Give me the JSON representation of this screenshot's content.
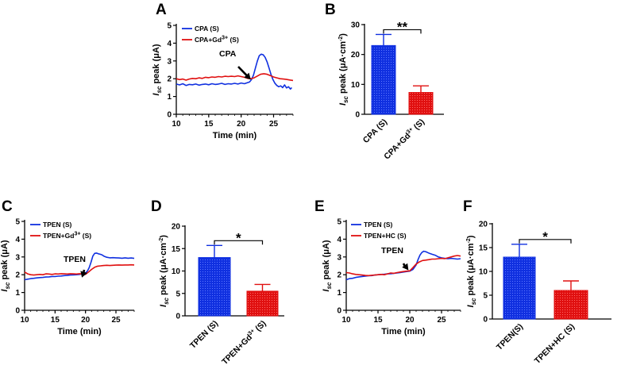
{
  "chart_data": [
    {
      "panel": "A",
      "type": "line",
      "xlabel": "Time (min)",
      "ylabel_prefix": "I",
      "ylabel_sub": "sc",
      "ylabel_rest": " peak (μA)",
      "xlim": [
        10,
        28
      ],
      "ylim": [
        0,
        5
      ],
      "xticks": [
        "10",
        "15",
        "20",
        "25"
      ],
      "yticks": [
        "0",
        "1",
        "2",
        "3",
        "4",
        "5"
      ],
      "series": [
        {
          "name": "CPA (S)",
          "legend_main": "CPA (S)",
          "legend_sup": "",
          "legend_after": "",
          "color": "#1030e0",
          "x": [
            10,
            10.5,
            11,
            11.5,
            12,
            12.5,
            13,
            13.5,
            14,
            14.5,
            15,
            15.5,
            16,
            16.5,
            17,
            17.5,
            18,
            18.5,
            19,
            19.5,
            20,
            20.5,
            21,
            21.3,
            21.6,
            21.9,
            22.2,
            22.5,
            22.8,
            23.1,
            23.4,
            23.7,
            24,
            24.3,
            24.6,
            24.9,
            25.2,
            25.5,
            25.8,
            26.1,
            26.4,
            26.7,
            27,
            27.3,
            27.6,
            27.8
          ],
          "y": [
            1.7,
            1.65,
            1.72,
            1.62,
            1.68,
            1.66,
            1.7,
            1.64,
            1.68,
            1.7,
            1.66,
            1.72,
            1.68,
            1.7,
            1.74,
            1.68,
            1.72,
            1.7,
            1.74,
            1.7,
            1.76,
            1.72,
            1.78,
            1.82,
            1.95,
            2.2,
            2.6,
            3.0,
            3.3,
            3.38,
            3.35,
            3.2,
            2.95,
            2.6,
            2.25,
            1.95,
            1.75,
            1.62,
            1.55,
            1.6,
            1.5,
            1.65,
            1.48,
            1.55,
            1.42,
            1.5
          ]
        },
        {
          "name": "CPA+Gd3+ (S)",
          "legend_main": "CPA+Gd",
          "legend_sup": "3+",
          "legend_after": " (S)",
          "color": "#e01010",
          "x": [
            10,
            10.5,
            11,
            11.5,
            12,
            12.5,
            13,
            13.5,
            14,
            14.5,
            15,
            15.5,
            16,
            16.5,
            17,
            17.5,
            18,
            18.5,
            19,
            19.5,
            20,
            20.5,
            21,
            21.5,
            22,
            22.5,
            23,
            23.5,
            24,
            24.5,
            25,
            25.5,
            26,
            26.5,
            27,
            27.5,
            28
          ],
          "y": [
            2.0,
            1.95,
            1.98,
            1.92,
            1.98,
            2.02,
            2.0,
            2.05,
            2.02,
            2.08,
            2.06,
            2.1,
            2.08,
            2.12,
            2.1,
            2.14,
            2.12,
            2.14,
            2.12,
            2.16,
            2.12,
            2.08,
            2.02,
            2.0,
            2.05,
            2.15,
            2.25,
            2.28,
            2.25,
            2.18,
            2.1,
            2.05,
            2.0,
            1.98,
            1.96,
            1.93,
            1.9
          ]
        }
      ],
      "annotation": {
        "text": "CPA",
        "x": 21.5,
        "y": 1.95
      }
    },
    {
      "panel": "B",
      "type": "bar",
      "ylabel_prefix": "I",
      "ylabel_sub": "sc",
      "ylabel_rest": " peak (μA·cm",
      "ylabel_sup": "-2",
      "ylabel_end": ")",
      "ylim": [
        0,
        30
      ],
      "yticks": [
        "0",
        "10",
        "20",
        "30"
      ],
      "categories": [
        "CPA (S)",
        "CPA+Gd3+ (S)"
      ],
      "cat_main": [
        "CPA (S)",
        "CPA+Gd"
      ],
      "cat_sup": [
        "",
        "3+"
      ],
      "cat_after": [
        "",
        " (S)"
      ],
      "values": [
        23.0,
        7.3
      ],
      "errors": [
        3.7,
        2.2
      ],
      "colors": [
        "#1030e0",
        "#e01010"
      ],
      "significance": "**"
    },
    {
      "panel": "C",
      "type": "line",
      "xlabel": "Time (min)",
      "ylabel_prefix": "I",
      "ylabel_sub": "sc",
      "ylabel_rest": " peak (μA)",
      "xlim": [
        10,
        28
      ],
      "ylim": [
        0,
        5
      ],
      "xticks": [
        "10",
        "15",
        "20",
        "25"
      ],
      "yticks": [
        "0",
        "1",
        "2",
        "3",
        "4",
        "5"
      ],
      "series": [
        {
          "name": "TPEN (S)",
          "legend_main": "TPEN (S)",
          "legend_sup": "",
          "legend_after": "",
          "color": "#1030e0",
          "x": [
            10,
            10.5,
            11,
            11.5,
            12,
            12.5,
            13,
            13.5,
            14,
            14.5,
            15,
            15.5,
            16,
            16.5,
            17,
            17.5,
            18,
            18.5,
            19,
            19.5,
            20,
            20.3,
            20.6,
            20.9,
            21.2,
            21.5,
            21.8,
            22.1,
            22.4,
            22.7,
            23,
            23.5,
            24,
            24.5,
            25,
            25.5,
            26,
            26.5,
            27,
            27.5,
            28
          ],
          "y": [
            1.72,
            1.75,
            1.78,
            1.8,
            1.82,
            1.84,
            1.85,
            1.87,
            1.88,
            1.9,
            1.9,
            1.92,
            1.93,
            1.95,
            1.96,
            1.98,
            1.99,
            2.0,
            2.02,
            2.05,
            2.1,
            2.2,
            2.4,
            2.7,
            3.05,
            3.2,
            3.22,
            3.18,
            3.15,
            3.12,
            3.05,
            2.98,
            2.95,
            2.96,
            2.95,
            2.94,
            2.93,
            2.95,
            2.93,
            2.94,
            2.92
          ]
        },
        {
          "name": "TPEN+Gd3+ (S)",
          "legend_main": "TPEN+Gd",
          "legend_sup": "3+",
          "legend_after": " (S)",
          "color": "#e01010",
          "x": [
            10,
            10.5,
            11,
            11.5,
            12,
            12.5,
            13,
            13.5,
            14,
            14.5,
            15,
            15.5,
            16,
            16.5,
            17,
            17.5,
            18,
            18.5,
            19,
            19.5,
            20,
            20.5,
            21,
            21.5,
            22,
            22.5,
            23,
            23.5,
            24,
            24.5,
            25,
            25.5,
            26,
            26.5,
            27,
            27.5,
            28
          ],
          "y": [
            2.15,
            2.05,
            2.0,
            1.98,
            2.0,
            2.02,
            2.0,
            2.05,
            2.04,
            2.02,
            2.05,
            2.04,
            2.06,
            2.05,
            2.04,
            2.06,
            2.05,
            2.04,
            2.06,
            2.05,
            2.02,
            2.15,
            2.3,
            2.42,
            2.48,
            2.5,
            2.52,
            2.53,
            2.52,
            2.53,
            2.54,
            2.55,
            2.54,
            2.55,
            2.55,
            2.56,
            2.55
          ]
        }
      ],
      "annotation": {
        "text": "TPEN",
        "x": 20.3,
        "y": 2.1
      }
    },
    {
      "panel": "D",
      "type": "bar",
      "ylabel_prefix": "I",
      "ylabel_sub": "sc",
      "ylabel_rest": " peak (μA·cm",
      "ylabel_sup": "-2",
      "ylabel_end": ")",
      "ylim": [
        0,
        20
      ],
      "yticks": [
        "0",
        "5",
        "10",
        "15",
        "20"
      ],
      "categories": [
        "TPEN (S)",
        "TPEN+Gd3+ (S)"
      ],
      "cat_main": [
        "TPEN (S)",
        "TPEN+Gd"
      ],
      "cat_sup": [
        "",
        "3+"
      ],
      "cat_after": [
        "",
        " (S)"
      ],
      "values": [
        13.0,
        5.5
      ],
      "errors": [
        2.7,
        1.5
      ],
      "colors": [
        "#1030e0",
        "#e01010"
      ],
      "significance": "*"
    },
    {
      "panel": "E",
      "type": "line",
      "xlabel": "Time (min)",
      "ylabel_prefix": "I",
      "ylabel_sub": "sc",
      "ylabel_rest": " peak (μA)",
      "xlim": [
        10,
        28
      ],
      "ylim": [
        0,
        5
      ],
      "xticks": [
        "10",
        "15",
        "20",
        "25"
      ],
      "yticks": [
        "0",
        "1",
        "2",
        "3",
        "4",
        "5"
      ],
      "series": [
        {
          "name": "TPEN (S)",
          "legend_main": "TPEN (S)",
          "legend_sup": "",
          "legend_after": "",
          "color": "#1030e0",
          "x": [
            10,
            10.5,
            11,
            11.5,
            12,
            12.5,
            13,
            13.5,
            14,
            14.5,
            15,
            15.5,
            16,
            16.5,
            17,
            17.5,
            18,
            18.5,
            19,
            19.5,
            20,
            20.5,
            21,
            21.3,
            21.6,
            21.9,
            22.2,
            22.5,
            22.8,
            23.1,
            23.5,
            24,
            24.5,
            25,
            25.5,
            26,
            26.5,
            27,
            27.5,
            28
          ],
          "y": [
            1.72,
            1.78,
            1.8,
            1.85,
            1.88,
            1.9,
            1.92,
            1.94,
            1.95,
            1.98,
            2.0,
            2.02,
            2.03,
            2.05,
            2.06,
            2.08,
            2.1,
            2.12,
            2.15,
            2.18,
            2.2,
            2.3,
            2.55,
            2.85,
            3.1,
            3.25,
            3.32,
            3.3,
            3.25,
            3.2,
            3.15,
            3.1,
            3.0,
            2.95,
            2.92,
            2.9,
            2.92,
            2.9,
            2.88,
            2.9
          ]
        },
        {
          "name": "TPEN+HC (S)",
          "legend_main": "TPEN+HC (S)",
          "legend_sup": "",
          "legend_after": "",
          "color": "#e01010",
          "x": [
            10,
            10.5,
            11,
            11.5,
            12,
            12.5,
            13,
            13.5,
            14,
            14.5,
            15,
            15.5,
            16,
            16.5,
            17,
            17.5,
            18,
            18.5,
            19,
            19.5,
            20,
            20.5,
            21,
            21.5,
            22,
            22.5,
            23,
            23.5,
            24,
            24.5,
            25,
            25.5,
            26,
            26.5,
            27,
            27.5,
            28
          ],
          "y": [
            2.12,
            2.1,
            2.05,
            2.02,
            2.0,
            1.98,
            1.96,
            1.95,
            1.97,
            1.98,
            2.0,
            2.02,
            2.0,
            2.05,
            2.1,
            2.08,
            2.12,
            2.15,
            2.18,
            2.2,
            2.22,
            2.4,
            2.6,
            2.72,
            2.8,
            2.82,
            2.85,
            2.88,
            2.88,
            2.9,
            2.92,
            2.9,
            2.95,
            3.0,
            3.05,
            3.08,
            3.05
          ]
        }
      ],
      "annotation": {
        "text": "TPEN",
        "x": 19.8,
        "y": 2.25
      }
    },
    {
      "panel": "F",
      "type": "bar",
      "ylabel_prefix": "I",
      "ylabel_sub": "sc",
      "ylabel_rest": " peak (μA·cm",
      "ylabel_sup": "-2",
      "ylabel_end": ")",
      "ylim": [
        0,
        20
      ],
      "yticks": [
        "0",
        "5",
        "10",
        "15",
        "20"
      ],
      "categories": [
        "TPEN(S)",
        "TPEN+HC (S)"
      ],
      "cat_main": [
        "TPEN(S)",
        "TPEN+HC (S)"
      ],
      "cat_sup": [
        "",
        ""
      ],
      "cat_after": [
        "",
        ""
      ],
      "values": [
        13.0,
        6.0
      ],
      "errors": [
        2.7,
        2.0
      ],
      "colors": [
        "#1030e0",
        "#e01010"
      ],
      "significance": "*"
    }
  ]
}
